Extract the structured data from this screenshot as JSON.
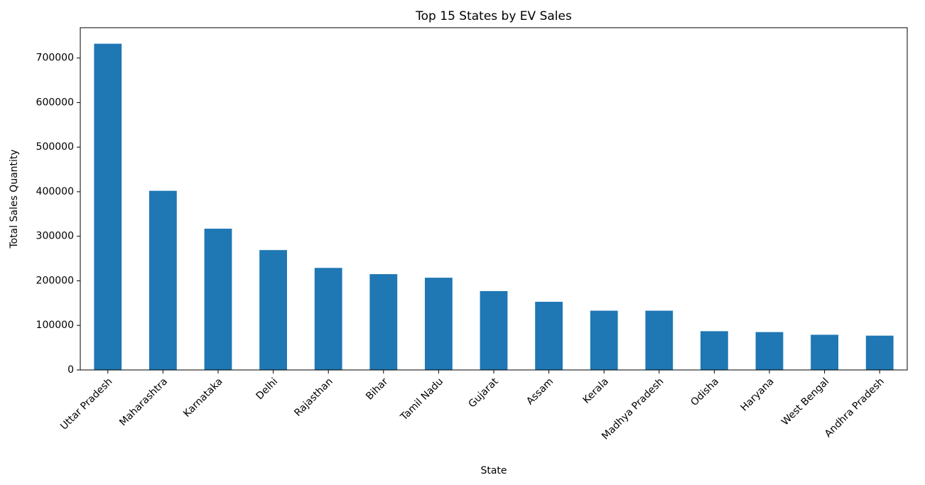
{
  "chart_data": {
    "type": "bar",
    "title": "Top 15 States by EV Sales",
    "xlabel": "State",
    "ylabel": "Total Sales Quantity",
    "categories": [
      "Uttar Pradesh",
      "Maharashtra",
      "Karnataka",
      "Delhi",
      "Rajasthan",
      "Bihar",
      "Tamil Nadu",
      "Gujarat",
      "Assam",
      "Kerala",
      "Madhya Pradesh",
      "Odisha",
      "Haryana",
      "West Bengal",
      "Andhra Pradesh"
    ],
    "values": [
      732000,
      402000,
      317000,
      269000,
      229000,
      215000,
      207000,
      177000,
      153000,
      133000,
      133000,
      87000,
      85000,
      79000,
      77000
    ],
    "yticks": [
      0,
      100000,
      200000,
      300000,
      400000,
      500000,
      600000,
      700000
    ],
    "ytick_labels": [
      "0",
      "100000",
      "200000",
      "300000",
      "400000",
      "500000",
      "600000",
      "700000"
    ],
    "ylim": [
      0,
      768000
    ],
    "grid": false,
    "legend": "none",
    "bar_color": "#1f77b4",
    "xtick_rotation_deg": 45
  }
}
